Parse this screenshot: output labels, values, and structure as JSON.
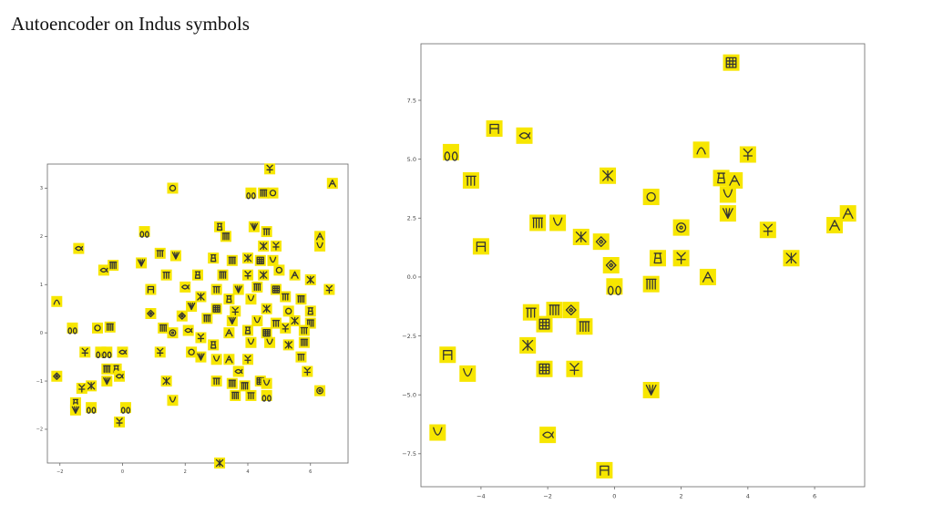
{
  "slide": {
    "title": "Autoencoder on Indus symbols"
  },
  "chart_data": [
    {
      "type": "scatter",
      "title": "",
      "xlabel": "",
      "ylabel": "",
      "xlim": [
        -2.4,
        7.2
      ],
      "ylim": [
        -2.7,
        3.5
      ],
      "xticks": [
        -2,
        0,
        2,
        4,
        6
      ],
      "yticks": [
        -2,
        -1,
        0,
        1,
        2,
        3
      ],
      "xtick_labels": [
        "−2",
        "0",
        "2",
        "4",
        "6"
      ],
      "ytick_labels": [
        "−2",
        "−1",
        "0",
        "1",
        "2",
        "3"
      ],
      "grid": false,
      "marker_color": "#f7e600",
      "glyph_color": "#333333",
      "points": [
        {
          "x": 4.7,
          "y": 3.4,
          "glyph": "fork"
        },
        {
          "x": 6.7,
          "y": 3.1,
          "glyph": "arrow"
        },
        {
          "x": 1.6,
          "y": 3.0,
          "glyph": "circle"
        },
        {
          "x": 4.1,
          "y": 2.9,
          "glyph": "ring"
        },
        {
          "x": 4.5,
          "y": 2.9,
          "glyph": "bars"
        },
        {
          "x": 4.8,
          "y": 2.9,
          "glyph": "circle"
        },
        {
          "x": 4.2,
          "y": 2.2,
          "glyph": "fan"
        },
        {
          "x": 4.6,
          "y": 2.1,
          "glyph": "comb"
        },
        {
          "x": 3.1,
          "y": 2.2,
          "glyph": "jar"
        },
        {
          "x": 0.7,
          "y": 2.1,
          "glyph": "ring"
        },
        {
          "x": 3.3,
          "y": 2.0,
          "glyph": "bars"
        },
        {
          "x": 6.3,
          "y": 2.0,
          "glyph": "arrow"
        },
        {
          "x": 4.5,
          "y": 1.8,
          "glyph": "x"
        },
        {
          "x": 4.9,
          "y": 1.8,
          "glyph": "fork"
        },
        {
          "x": 6.3,
          "y": 1.8,
          "glyph": "cup"
        },
        {
          "x": -1.4,
          "y": 1.75,
          "glyph": "fish"
        },
        {
          "x": 1.2,
          "y": 1.65,
          "glyph": "comb"
        },
        {
          "x": 1.7,
          "y": 1.6,
          "glyph": "fan"
        },
        {
          "x": 2.9,
          "y": 1.55,
          "glyph": "jar"
        },
        {
          "x": 3.5,
          "y": 1.5,
          "glyph": "bars"
        },
        {
          "x": 4.0,
          "y": 1.55,
          "glyph": "x"
        },
        {
          "x": 4.4,
          "y": 1.5,
          "glyph": "grid"
        },
        {
          "x": 4.8,
          "y": 1.5,
          "glyph": "cup"
        },
        {
          "x": -0.3,
          "y": 1.4,
          "glyph": "bars"
        },
        {
          "x": 0.6,
          "y": 1.45,
          "glyph": "fan"
        },
        {
          "x": -0.6,
          "y": 1.3,
          "glyph": "fish"
        },
        {
          "x": 1.4,
          "y": 1.2,
          "glyph": "comb"
        },
        {
          "x": 2.4,
          "y": 1.2,
          "glyph": "jar"
        },
        {
          "x": 3.2,
          "y": 1.2,
          "glyph": "bars"
        },
        {
          "x": 4.0,
          "y": 1.2,
          "glyph": "fork"
        },
        {
          "x": 4.5,
          "y": 1.2,
          "glyph": "x"
        },
        {
          "x": 5.0,
          "y": 1.3,
          "glyph": "circle"
        },
        {
          "x": 5.5,
          "y": 1.2,
          "glyph": "arrow"
        },
        {
          "x": 6.0,
          "y": 1.1,
          "glyph": "x"
        },
        {
          "x": 0.9,
          "y": 0.9,
          "glyph": "gate"
        },
        {
          "x": 2.0,
          "y": 0.95,
          "glyph": "fish"
        },
        {
          "x": 3.0,
          "y": 0.9,
          "glyph": "comb"
        },
        {
          "x": 3.7,
          "y": 0.9,
          "glyph": "fan"
        },
        {
          "x": 4.3,
          "y": 0.95,
          "glyph": "bars"
        },
        {
          "x": 4.9,
          "y": 0.9,
          "glyph": "grid"
        },
        {
          "x": 6.6,
          "y": 0.9,
          "glyph": "fork"
        },
        {
          "x": 2.5,
          "y": 0.75,
          "glyph": "x"
        },
        {
          "x": 3.4,
          "y": 0.7,
          "glyph": "jar"
        },
        {
          "x": 4.1,
          "y": 0.7,
          "glyph": "cup"
        },
        {
          "x": 5.2,
          "y": 0.75,
          "glyph": "comb"
        },
        {
          "x": 5.7,
          "y": 0.7,
          "glyph": "bars"
        },
        {
          "x": -2.1,
          "y": 0.65,
          "glyph": "arch"
        },
        {
          "x": 2.2,
          "y": 0.55,
          "glyph": "fan"
        },
        {
          "x": 3.0,
          "y": 0.5,
          "glyph": "grid"
        },
        {
          "x": 3.6,
          "y": 0.45,
          "glyph": "fork"
        },
        {
          "x": 4.6,
          "y": 0.5,
          "glyph": "x"
        },
        {
          "x": 5.3,
          "y": 0.45,
          "glyph": "circle"
        },
        {
          "x": 6.0,
          "y": 0.45,
          "glyph": "jar"
        },
        {
          "x": 0.9,
          "y": 0.4,
          "glyph": "diamond"
        },
        {
          "x": 1.9,
          "y": 0.35,
          "glyph": "diamond"
        },
        {
          "x": 2.7,
          "y": 0.3,
          "glyph": "bars"
        },
        {
          "x": 3.5,
          "y": 0.25,
          "glyph": "fan"
        },
        {
          "x": 4.3,
          "y": 0.25,
          "glyph": "cup"
        },
        {
          "x": 4.9,
          "y": 0.2,
          "glyph": "comb"
        },
        {
          "x": 5.5,
          "y": 0.25,
          "glyph": "x"
        },
        {
          "x": 6.0,
          "y": 0.2,
          "glyph": "bars"
        },
        {
          "x": 2.1,
          "y": 0.05,
          "glyph": "fish"
        },
        {
          "x": 3.4,
          "y": 0.0,
          "glyph": "arrow"
        },
        {
          "x": 4.0,
          "y": 0.05,
          "glyph": "jar"
        },
        {
          "x": 4.6,
          "y": 0.0,
          "glyph": "grid"
        },
        {
          "x": 5.2,
          "y": 0.1,
          "glyph": "fork"
        },
        {
          "x": 5.8,
          "y": 0.05,
          "glyph": "comb"
        },
        {
          "x": -1.6,
          "y": 0.1,
          "glyph": "ring"
        },
        {
          "x": -0.8,
          "y": 0.1,
          "glyph": "circle"
        },
        {
          "x": -0.4,
          "y": 0.12,
          "glyph": "bars"
        },
        {
          "x": 1.3,
          "y": 0.1,
          "glyph": "bars"
        },
        {
          "x": 1.6,
          "y": 0.0,
          "glyph": "target"
        },
        {
          "x": 2.5,
          "y": -0.1,
          "glyph": "fork"
        },
        {
          "x": 2.9,
          "y": -0.25,
          "glyph": "jar"
        },
        {
          "x": 4.1,
          "y": -0.2,
          "glyph": "cup"
        },
        {
          "x": 4.7,
          "y": -0.2,
          "glyph": "cup"
        },
        {
          "x": 5.3,
          "y": -0.25,
          "glyph": "x"
        },
        {
          "x": 5.8,
          "y": -0.2,
          "glyph": "bars"
        },
        {
          "x": -1.2,
          "y": -0.4,
          "glyph": "fork"
        },
        {
          "x": -0.7,
          "y": -0.4,
          "glyph": "ring"
        },
        {
          "x": -0.5,
          "y": -0.4,
          "glyph": "ring"
        },
        {
          "x": 0.0,
          "y": -0.4,
          "glyph": "fish"
        },
        {
          "x": 1.2,
          "y": -0.4,
          "glyph": "fork"
        },
        {
          "x": 2.2,
          "y": -0.4,
          "glyph": "circle"
        },
        {
          "x": 2.5,
          "y": -0.5,
          "glyph": "fan"
        },
        {
          "x": 3.0,
          "y": -0.55,
          "glyph": "cup"
        },
        {
          "x": 3.4,
          "y": -0.55,
          "glyph": "arrow"
        },
        {
          "x": 4.0,
          "y": -0.55,
          "glyph": "fork"
        },
        {
          "x": 5.7,
          "y": -0.5,
          "glyph": "comb"
        },
        {
          "x": -0.5,
          "y": -0.75,
          "glyph": "bars"
        },
        {
          "x": -0.2,
          "y": -0.75,
          "glyph": "jar"
        },
        {
          "x": 3.7,
          "y": -0.8,
          "glyph": "fish"
        },
        {
          "x": 5.9,
          "y": -0.8,
          "glyph": "fork"
        },
        {
          "x": -2.1,
          "y": -0.9,
          "glyph": "diamond"
        },
        {
          "x": -0.5,
          "y": -1.0,
          "glyph": "fan"
        },
        {
          "x": -0.1,
          "y": -0.9,
          "glyph": "fish"
        },
        {
          "x": 1.4,
          "y": -1.0,
          "glyph": "x"
        },
        {
          "x": 3.0,
          "y": -1.0,
          "glyph": "comb"
        },
        {
          "x": 3.5,
          "y": -1.05,
          "glyph": "bars"
        },
        {
          "x": 3.9,
          "y": -1.1,
          "glyph": "bars"
        },
        {
          "x": 4.4,
          "y": -1.0,
          "glyph": "grid"
        },
        {
          "x": 4.6,
          "y": -1.05,
          "glyph": "cup"
        },
        {
          "x": 6.3,
          "y": -1.2,
          "glyph": "target"
        },
        {
          "x": -1.3,
          "y": -1.15,
          "glyph": "fork"
        },
        {
          "x": -1.0,
          "y": -1.1,
          "glyph": "x"
        },
        {
          "x": 3.6,
          "y": -1.3,
          "glyph": "bars"
        },
        {
          "x": 4.1,
          "y": -1.3,
          "glyph": "comb"
        },
        {
          "x": 4.6,
          "y": -1.3,
          "glyph": "ring"
        },
        {
          "x": -1.5,
          "y": -1.45,
          "glyph": "jar"
        },
        {
          "x": 1.6,
          "y": -1.4,
          "glyph": "cup"
        },
        {
          "x": -1.0,
          "y": -1.55,
          "glyph": "ring"
        },
        {
          "x": -1.5,
          "y": -1.6,
          "glyph": "fan"
        },
        {
          "x": 0.1,
          "y": -1.55,
          "glyph": "ring"
        },
        {
          "x": -0.1,
          "y": -1.85,
          "glyph": "fork"
        },
        {
          "x": 3.1,
          "y": -2.7,
          "glyph": "x"
        }
      ]
    },
    {
      "type": "scatter",
      "title": "",
      "xlabel": "",
      "ylabel": "",
      "xlim": [
        -5.8,
        7.5
      ],
      "ylim": [
        -8.9,
        9.9
      ],
      "xticks": [
        -4,
        -2,
        0,
        2,
        4,
        6
      ],
      "yticks": [
        -7.5,
        -5.0,
        -2.5,
        0.0,
        2.5,
        5.0,
        7.5
      ],
      "xtick_labels": [
        "−4",
        "−2",
        "0",
        "2",
        "4",
        "6"
      ],
      "ytick_labels": [
        "−7.5",
        "−5.0",
        "−2.5",
        "0.0",
        "2.5",
        "5.0",
        "7.5"
      ],
      "grid": false,
      "marker_color": "#f7e600",
      "glyph_color": "#333333",
      "points": [
        {
          "x": 3.5,
          "y": 9.1,
          "glyph": "grid"
        },
        {
          "x": -3.6,
          "y": 6.3,
          "glyph": "gate"
        },
        {
          "x": -2.7,
          "y": 6.0,
          "glyph": "fish"
        },
        {
          "x": -4.9,
          "y": 5.3,
          "glyph": "ring"
        },
        {
          "x": 2.6,
          "y": 5.4,
          "glyph": "arch"
        },
        {
          "x": 4.0,
          "y": 5.2,
          "glyph": "fork"
        },
        {
          "x": -4.3,
          "y": 4.1,
          "glyph": "comb"
        },
        {
          "x": -0.2,
          "y": 4.3,
          "glyph": "x"
        },
        {
          "x": 3.2,
          "y": 4.2,
          "glyph": "jar"
        },
        {
          "x": 3.6,
          "y": 4.1,
          "glyph": "arrow"
        },
        {
          "x": 3.4,
          "y": 3.5,
          "glyph": "cup"
        },
        {
          "x": 1.1,
          "y": 3.4,
          "glyph": "circle"
        },
        {
          "x": 3.4,
          "y": 2.7,
          "glyph": "fan"
        },
        {
          "x": -2.3,
          "y": 2.3,
          "glyph": "bars"
        },
        {
          "x": -1.7,
          "y": 2.3,
          "glyph": "cup"
        },
        {
          "x": 2.0,
          "y": 2.1,
          "glyph": "target"
        },
        {
          "x": 4.6,
          "y": 2.0,
          "glyph": "fork"
        },
        {
          "x": 6.6,
          "y": 2.2,
          "glyph": "arrow"
        },
        {
          "x": 7.0,
          "y": 2.7,
          "glyph": "arrow"
        },
        {
          "x": -4.0,
          "y": 1.3,
          "glyph": "gate"
        },
        {
          "x": -1.0,
          "y": 1.7,
          "glyph": "x"
        },
        {
          "x": -0.4,
          "y": 1.5,
          "glyph": "diamond"
        },
        {
          "x": 1.3,
          "y": 0.8,
          "glyph": "jar"
        },
        {
          "x": 2.0,
          "y": 0.8,
          "glyph": "fork"
        },
        {
          "x": 5.3,
          "y": 0.8,
          "glyph": "x"
        },
        {
          "x": -0.1,
          "y": 0.5,
          "glyph": "diamond"
        },
        {
          "x": 2.8,
          "y": 0.0,
          "glyph": "arrow"
        },
        {
          "x": 0.0,
          "y": -0.4,
          "glyph": "ring"
        },
        {
          "x": 1.1,
          "y": -0.3,
          "glyph": "bars"
        },
        {
          "x": -2.5,
          "y": -1.5,
          "glyph": "comb"
        },
        {
          "x": -1.8,
          "y": -1.4,
          "glyph": "bars"
        },
        {
          "x": -1.3,
          "y": -1.4,
          "glyph": "diamond"
        },
        {
          "x": -2.1,
          "y": -2.0,
          "glyph": "grid"
        },
        {
          "x": -0.9,
          "y": -2.1,
          "glyph": "bars"
        },
        {
          "x": -2.6,
          "y": -2.9,
          "glyph": "x"
        },
        {
          "x": -5.0,
          "y": -3.3,
          "glyph": "gate"
        },
        {
          "x": -4.4,
          "y": -4.1,
          "glyph": "cup"
        },
        {
          "x": -2.1,
          "y": -3.9,
          "glyph": "grid"
        },
        {
          "x": -1.2,
          "y": -3.9,
          "glyph": "fork"
        },
        {
          "x": 1.1,
          "y": -4.8,
          "glyph": "fan"
        },
        {
          "x": -5.3,
          "y": -6.6,
          "glyph": "cup"
        },
        {
          "x": -2.0,
          "y": -6.7,
          "glyph": "fish"
        },
        {
          "x": -0.3,
          "y": -8.2,
          "glyph": "gate"
        }
      ]
    }
  ]
}
